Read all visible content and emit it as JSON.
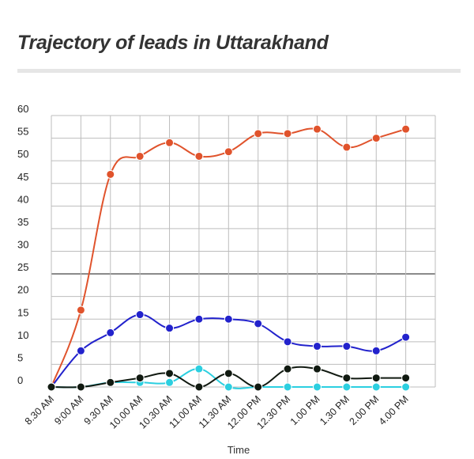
{
  "title": "Trajectory of leads in Uttarakhand",
  "chart_data": {
    "type": "line",
    "title": "Trajectory of leads in Uttarakhand",
    "xlabel": "Time",
    "ylabel": "",
    "ylim": [
      0,
      60
    ],
    "y_ticks": [
      0,
      5,
      10,
      15,
      20,
      25,
      30,
      35,
      40,
      45,
      50,
      55,
      60
    ],
    "grid": true,
    "legend": "none",
    "categories": [
      "8.30 AM",
      "9:00 AM",
      "9.30 AM",
      "10.00 AM",
      "10.30 AM",
      "11.00 AM",
      "11.30 AM",
      "12.00 PM",
      "12.30 PM",
      "1.00 PM",
      "1.30 PM",
      "2.00 PM",
      "4.00 PM"
    ],
    "series": [
      {
        "color": "#e0532c",
        "values": [
          0,
          17,
          47,
          51,
          54,
          51,
          52,
          56,
          56,
          57,
          53,
          55,
          57
        ]
      },
      {
        "color": "#2222cc",
        "values": [
          0,
          8,
          12,
          16,
          13,
          15,
          15,
          14,
          10,
          9,
          9,
          8,
          11
        ]
      },
      {
        "color": "#2ccfe0",
        "values": [
          0,
          0,
          1,
          1,
          1,
          4,
          0,
          0,
          0,
          0,
          0,
          0,
          0
        ]
      },
      {
        "color": "#111a11",
        "values": [
          0,
          0,
          1,
          2,
          3,
          0,
          3,
          0,
          4,
          4,
          2,
          2,
          2
        ]
      }
    ]
  }
}
